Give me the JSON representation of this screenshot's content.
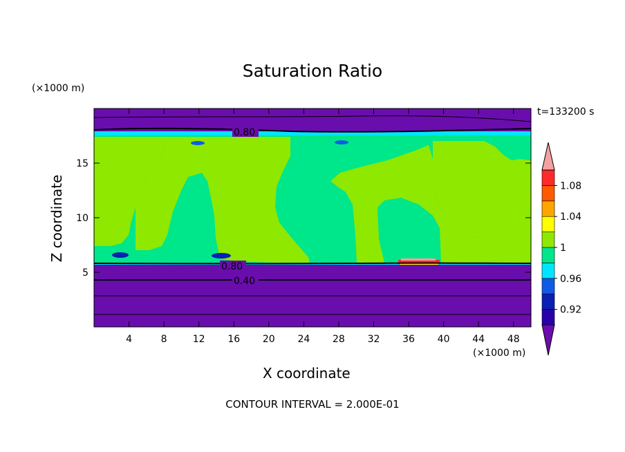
{
  "chart_data": {
    "type": "contour",
    "title": "Saturation Ratio",
    "xlabel": "X coordinate",
    "ylabel": "Z coordinate",
    "x_unit": "(×1000 m)",
    "y_unit": "(×1000 m)",
    "time_label": "t=133200 s",
    "footer": "CONTOUR INTERVAL = 2.000E-01",
    "xlim": [
      0,
      50
    ],
    "ylim": [
      0,
      20
    ],
    "x_ticks": [
      4,
      8,
      12,
      16,
      20,
      24,
      28,
      32,
      36,
      40,
      44,
      48
    ],
    "y_ticks": [
      5,
      10,
      15
    ],
    "contour_labels": [
      {
        "text": "0.80",
        "x": 17.5,
        "z": 17.8
      },
      {
        "text": "0.80",
        "x": 16.0,
        "z": 5.5
      },
      {
        "text": "0.40",
        "x": 17.5,
        "z": 4.2
      }
    ],
    "colorbar": {
      "tick_labels": [
        "0.92",
        "0.96",
        "1",
        "1.04",
        "1.08"
      ],
      "levels": [
        0.92,
        0.94,
        0.96,
        0.98,
        1.0,
        1.02,
        1.04,
        1.06,
        1.08,
        1.1
      ],
      "colors": [
        "#6a0dad",
        "#2a00a8",
        "#0a1fb4",
        "#0f5be6",
        "#00e5ff",
        "#00e68a",
        "#8ee800",
        "#ffff00",
        "#ffa500",
        "#ff5a00",
        "#ff2a2a",
        "#f5a0a0"
      ]
    },
    "field_colors": {
      "dry": "#6a0dad",
      "near_saturated": "#00e68a",
      "saturated": "#8ee800",
      "supersaturated_peak": "#ff2a2a"
    }
  }
}
